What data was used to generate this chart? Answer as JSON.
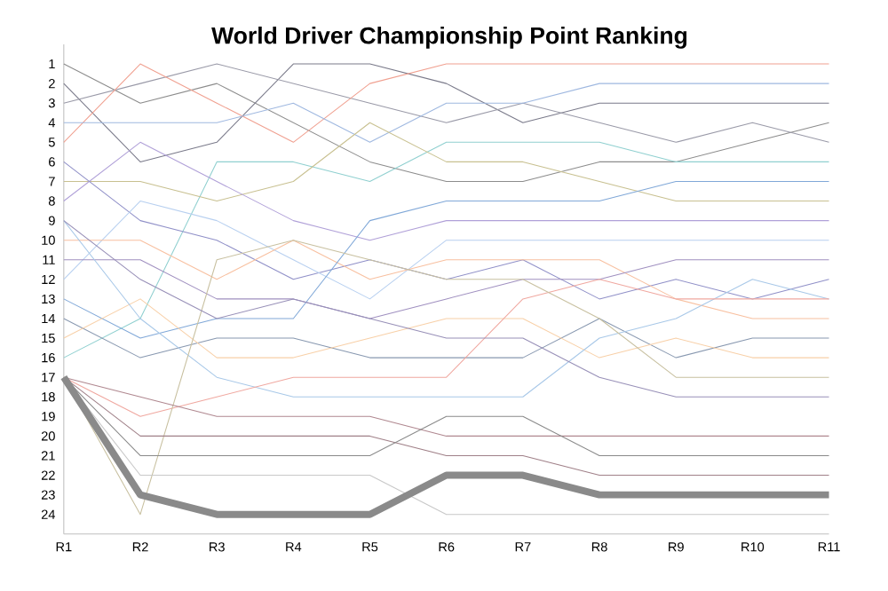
{
  "chart_data": {
    "type": "line",
    "title": "World Driver Championship Point Ranking",
    "categories": [
      "R1",
      "R2",
      "R3",
      "R4",
      "R5",
      "R6",
      "R7",
      "R8",
      "R9",
      "R10",
      "R11"
    ],
    "ylim": [
      25,
      0
    ],
    "yticks": [
      1,
      2,
      3,
      4,
      5,
      6,
      7,
      8,
      9,
      10,
      11,
      12,
      13,
      14,
      15,
      16,
      17,
      18,
      19,
      20,
      21,
      22,
      23,
      24
    ],
    "grid": false,
    "marker": "none",
    "line_style": "solid",
    "series": [
      {
        "color": "#8c8c8c",
        "values": [
          1,
          3,
          2,
          4,
          6,
          7,
          7,
          6,
          6,
          5,
          4
        ]
      },
      {
        "color": "#7a7a8a",
        "values": [
          2,
          6,
          5,
          1,
          1,
          2,
          4,
          3,
          3,
          3,
          3
        ]
      },
      {
        "color": "#9a9aa8",
        "values": [
          3,
          2,
          1,
          2,
          3,
          4,
          3,
          4,
          5,
          4,
          5
        ]
      },
      {
        "color": "#f0a090",
        "values": [
          5,
          1,
          3,
          5,
          2,
          1,
          1,
          1,
          1,
          1,
          1
        ]
      },
      {
        "color": "#9fb8e0",
        "values": [
          4,
          4,
          4,
          3,
          5,
          3,
          3,
          2,
          2,
          2,
          2
        ]
      },
      {
        "color": "#90d0d0",
        "values": [
          16,
          14,
          6,
          6,
          7,
          5,
          5,
          5,
          6,
          6,
          6
        ]
      },
      {
        "color": "#c8c090",
        "values": [
          7,
          7,
          8,
          7,
          4,
          6,
          6,
          7,
          8,
          8,
          8
        ]
      },
      {
        "color": "#b0a0d8",
        "values": [
          8,
          5,
          7,
          9,
          10,
          9,
          9,
          9,
          9,
          9,
          9
        ]
      },
      {
        "color": "#9090c8",
        "values": [
          6,
          9,
          10,
          12,
          11,
          12,
          11,
          13,
          12,
          13,
          12
        ]
      },
      {
        "color": "#b8d0f0",
        "values": [
          12,
          8,
          9,
          11,
          13,
          10,
          10,
          10,
          10,
          10,
          10
        ]
      },
      {
        "color": "#f8c0a0",
        "values": [
          10,
          10,
          12,
          10,
          12,
          11,
          11,
          11,
          13,
          14,
          14
        ]
      },
      {
        "color": "#a090c0",
        "values": [
          11,
          11,
          13,
          13,
          14,
          13,
          12,
          12,
          11,
          11,
          11
        ]
      },
      {
        "color": "#80a8d8",
        "values": [
          13,
          15,
          14,
          14,
          9,
          8,
          8,
          8,
          7,
          7,
          7
        ]
      },
      {
        "color": "#8898b0",
        "values": [
          14,
          16,
          15,
          15,
          16,
          16,
          16,
          14,
          16,
          15,
          15
        ]
      },
      {
        "color": "#f8d0a8",
        "values": [
          15,
          13,
          16,
          16,
          15,
          14,
          14,
          16,
          15,
          16,
          16
        ]
      },
      {
        "color": "#a8c8e8",
        "values": [
          9,
          14,
          17,
          18,
          18,
          18,
          18,
          15,
          14,
          12,
          13
        ]
      },
      {
        "color": "#f0a8a0",
        "values": [
          17,
          19,
          18,
          17,
          17,
          17,
          13,
          12,
          13,
          13,
          13
        ]
      },
      {
        "color": "#c8c0a0",
        "values": [
          17,
          24,
          11,
          10,
          11,
          12,
          12,
          14,
          17,
          17,
          17
        ]
      },
      {
        "color": "#9890b8",
        "values": [
          9,
          12,
          14,
          13,
          14,
          15,
          15,
          17,
          18,
          18,
          18
        ]
      },
      {
        "color": "#b08890",
        "values": [
          17,
          18,
          19,
          19,
          19,
          20,
          20,
          20,
          20,
          20,
          20
        ]
      },
      {
        "color": "#a08088",
        "values": [
          17,
          20,
          20,
          20,
          20,
          21,
          21,
          22,
          22,
          22,
          22
        ]
      },
      {
        "color": "#8a8a8a",
        "values": [
          17,
          21,
          21,
          21,
          21,
          19,
          19,
          21,
          21,
          21,
          21
        ]
      },
      {
        "color": "#c8c8c8",
        "values": [
          17,
          22,
          22,
          22,
          22,
          24,
          24,
          24,
          24,
          24,
          24
        ]
      },
      {
        "color": "#8a8a8a",
        "values": [
          17,
          23,
          24,
          24,
          24,
          22,
          22,
          23,
          23,
          23,
          23
        ]
      }
    ]
  }
}
